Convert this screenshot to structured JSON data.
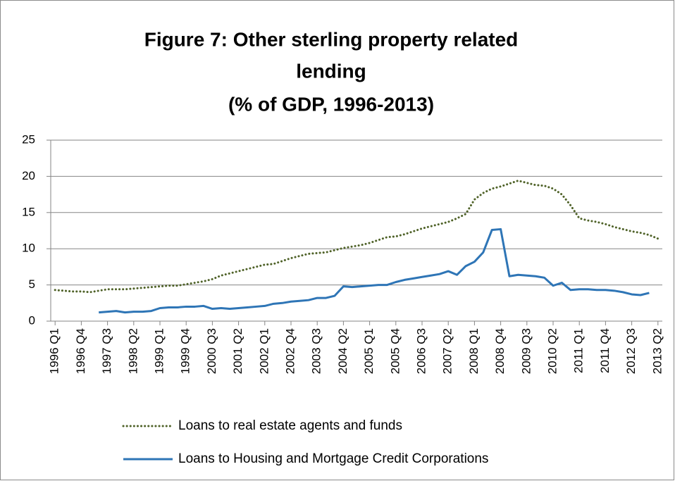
{
  "chart_data": {
    "type": "line",
    "title": [
      "Figure 7:  Other sterling  property related",
      "lending",
      "(% of GDP, 1996-2013)"
    ],
    "categories": [
      "1996 Q1",
      null,
      null,
      "1996 Q4",
      null,
      null,
      "1997 Q3",
      null,
      null,
      "1998 Q2",
      null,
      null,
      "1999 Q1",
      null,
      null,
      "1999 Q4",
      null,
      null,
      "2000 Q3",
      null,
      null,
      "2001 Q2",
      null,
      null,
      "2002 Q1",
      null,
      null,
      "2002 Q4",
      null,
      null,
      "2003 Q3",
      null,
      null,
      "2004 Q2",
      null,
      null,
      "2005 Q1",
      null,
      null,
      "2005 Q4",
      null,
      null,
      "2006 Q3",
      null,
      null,
      "2007 Q2",
      null,
      null,
      "2008 Q1",
      null,
      null,
      "2008 Q4",
      null,
      null,
      "2009 Q3",
      null,
      null,
      "2010 Q2",
      null,
      null,
      "2011 Q1",
      null,
      null,
      "2011 Q4",
      null,
      null,
      "2012 Q3",
      null,
      null,
      "2013 Q2"
    ],
    "series": [
      {
        "name": "Loans to real estate agents and funds",
        "color": "#4f6228",
        "dash": "dotted",
        "values": [
          4.3,
          4.2,
          4.1,
          4.1,
          4.0,
          4.2,
          4.4,
          4.4,
          4.4,
          4.5,
          4.6,
          4.7,
          4.8,
          4.9,
          4.9,
          5.1,
          5.3,
          5.5,
          5.8,
          6.3,
          6.6,
          6.9,
          7.2,
          7.5,
          7.8,
          7.9,
          8.3,
          8.7,
          9.0,
          9.3,
          9.4,
          9.5,
          9.8,
          10.1,
          10.3,
          10.5,
          10.8,
          11.2,
          11.6,
          11.7,
          12.0,
          12.4,
          12.8,
          13.1,
          13.4,
          13.7,
          14.2,
          14.8,
          16.8,
          17.7,
          18.3,
          18.6,
          19.0,
          19.4,
          19.1,
          18.8,
          18.7,
          18.3,
          17.5,
          16.0,
          14.2,
          13.9,
          13.7,
          13.4,
          13.0,
          12.7,
          12.4,
          12.2,
          11.9,
          11.4
        ]
      },
      {
        "name": "Loans to Housing and Mortgage Credit Corporations",
        "color": "#2e75b6",
        "dash": "solid",
        "values": [
          null,
          null,
          null,
          null,
          null,
          1.2,
          1.3,
          1.4,
          1.2,
          1.3,
          1.3,
          1.4,
          1.8,
          1.9,
          1.9,
          2.0,
          2.0,
          2.1,
          1.7,
          1.8,
          1.7,
          1.8,
          1.9,
          2.0,
          2.1,
          2.4,
          2.5,
          2.7,
          2.8,
          2.9,
          3.2,
          3.2,
          3.5,
          4.8,
          4.7,
          4.8,
          4.9,
          5.0,
          5.0,
          5.4,
          5.7,
          5.9,
          6.1,
          6.3,
          6.5,
          6.9,
          6.4,
          7.6,
          8.2,
          9.5,
          12.6,
          12.7,
          6.2,
          6.4,
          6.3,
          6.2,
          6.0,
          4.9,
          5.3,
          4.3,
          4.4,
          4.4,
          4.3,
          4.3,
          4.2,
          4.0,
          3.7,
          3.6,
          3.9,
          null
        ]
      }
    ],
    "ylim": [
      0,
      25
    ],
    "yticks": [
      0,
      5,
      10,
      15,
      20,
      25
    ],
    "grid": true
  }
}
